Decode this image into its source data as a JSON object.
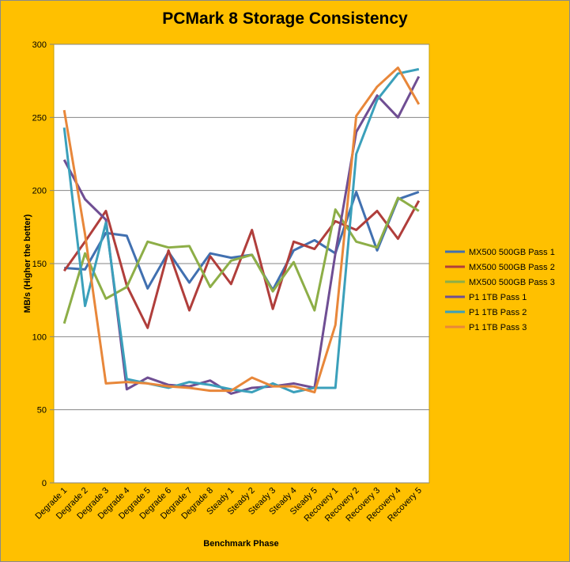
{
  "chart_data": {
    "type": "line",
    "title": "PCMark 8 Storage Consistency",
    "xlabel": "Benchmark Phase",
    "ylabel": "MB/s (Higher the better)",
    "ylim": [
      0,
      300
    ],
    "yticks": [
      0,
      50,
      100,
      150,
      200,
      250,
      300
    ],
    "grid": true,
    "legend_position": "right",
    "categories": [
      "Degrade 1",
      "Degrade 2",
      "Degrade 3",
      "Degrade 4",
      "Degrade 5",
      "Degrade 6",
      "Degrade 7",
      "Degrade 8",
      "Steady 1",
      "Steady 2",
      "Steady 3",
      "Steady 4",
      "Steady 5",
      "Recovery 1",
      "Recovery 2",
      "Recovery 3",
      "Recovery 4",
      "Recovery 5"
    ],
    "series": [
      {
        "name": "MX500 500GB Pass 1",
        "color": "#4170B0",
        "values": [
          147,
          146,
          171,
          169,
          133,
          158,
          137,
          157,
          154,
          156,
          132,
          159,
          166,
          157,
          199,
          159,
          194,
          199
        ]
      },
      {
        "name": "MX500 500GB Pass 2",
        "color": "#B03E3B",
        "values": [
          145,
          165,
          186,
          135,
          106,
          159,
          118,
          155,
          136,
          173,
          119,
          165,
          160,
          179,
          173,
          186,
          167,
          193
        ]
      },
      {
        "name": "MX500 500GB Pass 3",
        "color": "#8DAE47",
        "values": [
          109,
          157,
          126,
          134,
          165,
          161,
          162,
          134,
          152,
          156,
          131,
          151,
          118,
          187,
          165,
          161,
          195,
          186
        ]
      },
      {
        "name": "P1 1TB Pass 1",
        "color": "#6F4E93",
        "values": [
          221,
          194,
          180,
          64,
          72,
          67,
          66,
          70,
          61,
          65,
          66,
          68,
          65,
          157,
          240,
          265,
          250,
          278
        ]
      },
      {
        "name": "P1 1TB Pass 2",
        "color": "#3BA0BB",
        "values": [
          243,
          121,
          178,
          71,
          68,
          65,
          69,
          67,
          64,
          62,
          68,
          62,
          65,
          65,
          225,
          262,
          280,
          283
        ]
      },
      {
        "name": "P1 1TB Pass 3",
        "color": "#E8873A",
        "values": [
          255,
          170,
          68,
          69,
          68,
          66,
          65,
          63,
          63,
          72,
          66,
          66,
          62,
          108,
          251,
          271,
          284,
          259
        ]
      }
    ]
  }
}
